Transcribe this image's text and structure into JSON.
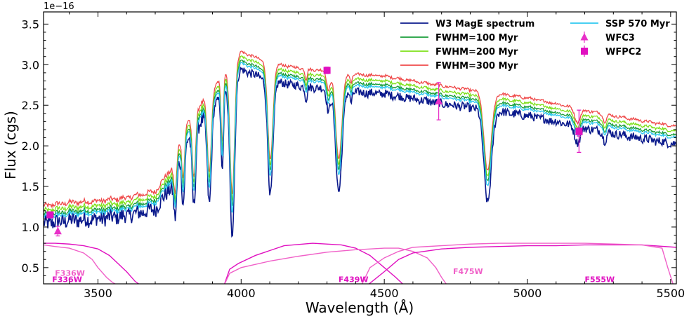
{
  "chart_data": {
    "type": "line",
    "title": "",
    "xlabel": "Wavelength (Å)",
    "ylabel": "Flux (cgs)",
    "y_offset_label": "1e−16",
    "xlim": [
      3310,
      5520
    ],
    "ylim": [
      0.3,
      3.65
    ],
    "x_ticks": [
      3500,
      4000,
      4500,
      5000,
      5500
    ],
    "y_ticks": [
      0.5,
      1.0,
      1.5,
      2.0,
      2.5,
      3.0,
      3.5
    ],
    "y_tick_labels": [
      "0.5",
      "1.0",
      "1.5",
      "2.0",
      "2.5",
      "3.0",
      "3.5"
    ],
    "legend_position": "top-right",
    "continuum": {
      "x": [
        3310,
        3400,
        3500,
        3600,
        3700,
        3760,
        3800,
        3900,
        4000,
        4100,
        4200,
        4300,
        4400,
        4500,
        4600,
        4700,
        4800,
        4900,
        5000,
        5100,
        5200,
        5300,
        5400,
        5520
      ],
      "y": [
        1.12,
        1.16,
        1.18,
        1.22,
        1.3,
        1.6,
        2.1,
        2.55,
        3.02,
        2.88,
        2.82,
        2.78,
        2.74,
        2.72,
        2.66,
        2.6,
        2.55,
        2.5,
        2.45,
        2.38,
        2.3,
        2.23,
        2.17,
        2.1
      ]
    },
    "absorption_lines": [
      {
        "center": 3770,
        "depth": 0.5,
        "width": 5
      },
      {
        "center": 3798,
        "depth": 0.65,
        "width": 5
      },
      {
        "center": 3835,
        "depth": 0.85,
        "width": 6
      },
      {
        "center": 3889,
        "depth": 1.05,
        "width": 7
      },
      {
        "center": 3934,
        "depth": 0.9,
        "width": 4
      },
      {
        "center": 3969,
        "depth": 1.75,
        "width": 8
      },
      {
        "center": 4102,
        "depth": 1.3,
        "width": 9
      },
      {
        "center": 4227,
        "depth": 0.15,
        "width": 4
      },
      {
        "center": 4305,
        "depth": 0.25,
        "width": 6
      },
      {
        "center": 4341,
        "depth": 1.15,
        "width": 11
      },
      {
        "center": 4384,
        "depth": 0.12,
        "width": 4
      },
      {
        "center": 4861,
        "depth": 1.05,
        "width": 13
      },
      {
        "center": 5175,
        "depth": 0.18,
        "width": 10
      },
      {
        "center": 5270,
        "depth": 0.1,
        "width": 6
      }
    ],
    "series": [
      {
        "name": "W3 MagE spectrum",
        "color": "#0b1a8c",
        "offset": -0.08,
        "depth_scale": 1.08,
        "noise": 0.075
      },
      {
        "name": "FWHM=100 Myr",
        "color": "#1a9e3a",
        "offset": 0.03,
        "depth_scale": 0.94,
        "noise": 0.03
      },
      {
        "name": "FWHM=200 Myr",
        "color": "#7ee01a",
        "offset": 0.08,
        "depth_scale": 0.93,
        "noise": 0.03
      },
      {
        "name": "FWHM=300 Myr",
        "color": "#ef4a4a",
        "offset": 0.14,
        "depth_scale": 0.92,
        "noise": 0.03
      },
      {
        "name": "SSP 570 Myr",
        "color": "#2ec8f0",
        "offset": 0.0,
        "depth_scale": 0.97,
        "noise": 0.03
      }
    ],
    "photometry": [
      {
        "name": "WFC3",
        "marker": "triangle",
        "color": "#e830c8",
        "points": [
          {
            "x": 3360,
            "y": 0.95,
            "yerr": 0.06
          },
          {
            "x": 4690,
            "y": 2.55,
            "yerr": 0.23
          },
          {
            "x": 5180,
            "y": 2.17,
            "yerr": 0.05
          }
        ]
      },
      {
        "name": "WFPC2",
        "marker": "square",
        "color": "#e010c0",
        "points": [
          {
            "x": 3333,
            "y": 1.15,
            "yerr": 0.03
          },
          {
            "x": 4300,
            "y": 2.93,
            "yerr": 0.04
          },
          {
            "x": 5180,
            "y": 2.18,
            "yerr": 0.26
          }
        ]
      }
    ],
    "filter_curves": [
      {
        "name": "F336W",
        "color": "#e010c0",
        "x": [
          3310,
          3350,
          3400,
          3450,
          3500,
          3540,
          3570,
          3600,
          3630,
          3650
        ],
        "y": [
          0.8,
          0.8,
          0.79,
          0.77,
          0.73,
          0.65,
          0.55,
          0.45,
          0.33,
          0.28
        ]
      },
      {
        "name": "F336W",
        "color": "#f060c8",
        "x": [
          3310,
          3350,
          3400,
          3450,
          3480,
          3500,
          3530,
          3550,
          3570
        ],
        "y": [
          0.78,
          0.76,
          0.74,
          0.68,
          0.6,
          0.5,
          0.38,
          0.32,
          0.28
        ]
      },
      {
        "name": "F439W",
        "color": "#e010c0",
        "x": [
          3940,
          3960,
          3990,
          4050,
          4150,
          4250,
          4350,
          4400,
          4450,
          4500,
          4540,
          4570
        ],
        "y": [
          0.28,
          0.48,
          0.55,
          0.65,
          0.77,
          0.8,
          0.78,
          0.74,
          0.65,
          0.5,
          0.38,
          0.28
        ]
      },
      {
        "name": "F475W",
        "color": "#f060c8",
        "x": [
          3940,
          3960,
          4000,
          4100,
          4200,
          4300,
          4400,
          4500,
          4550,
          4600,
          4650,
          4680,
          4700,
          4720
        ],
        "y": [
          0.28,
          0.43,
          0.5,
          0.58,
          0.64,
          0.69,
          0.72,
          0.74,
          0.74,
          0.7,
          0.62,
          0.5,
          0.38,
          0.28
        ]
      },
      {
        "name": "F475W",
        "color": "#e010c0",
        "x": [
          4440,
          4500,
          4550,
          4600,
          4700,
          4800,
          4900,
          5000,
          5100,
          5200,
          5300,
          5400,
          5520
        ],
        "y": [
          0.28,
          0.45,
          0.6,
          0.68,
          0.73,
          0.75,
          0.76,
          0.77,
          0.77,
          0.78,
          0.78,
          0.78,
          0.75
        ]
      },
      {
        "name": "F555W",
        "color": "#f060c8",
        "x": [
          4420,
          4450,
          4500,
          4550,
          4600,
          4700,
          4800,
          4900,
          5000,
          5100,
          5200,
          5300,
          5400,
          5470,
          5490,
          5510
        ],
        "y": [
          0.28,
          0.5,
          0.62,
          0.7,
          0.75,
          0.77,
          0.79,
          0.8,
          0.8,
          0.8,
          0.8,
          0.79,
          0.78,
          0.74,
          0.5,
          0.28
        ]
      }
    ],
    "filter_labels": [
      {
        "text": "F336W",
        "x": 3350,
        "y": 0.4,
        "color": "#f060c8"
      },
      {
        "text": "F336W",
        "x": 3340,
        "y": 0.32,
        "color": "#e010c0"
      },
      {
        "text": "F439W",
        "x": 4340,
        "y": 0.32,
        "color": "#e010c0"
      },
      {
        "text": "F475W",
        "x": 4740,
        "y": 0.42,
        "color": "#f060c8"
      },
      {
        "text": "F555W",
        "x": 5200,
        "y": 0.32,
        "color": "#e010c0"
      }
    ]
  }
}
